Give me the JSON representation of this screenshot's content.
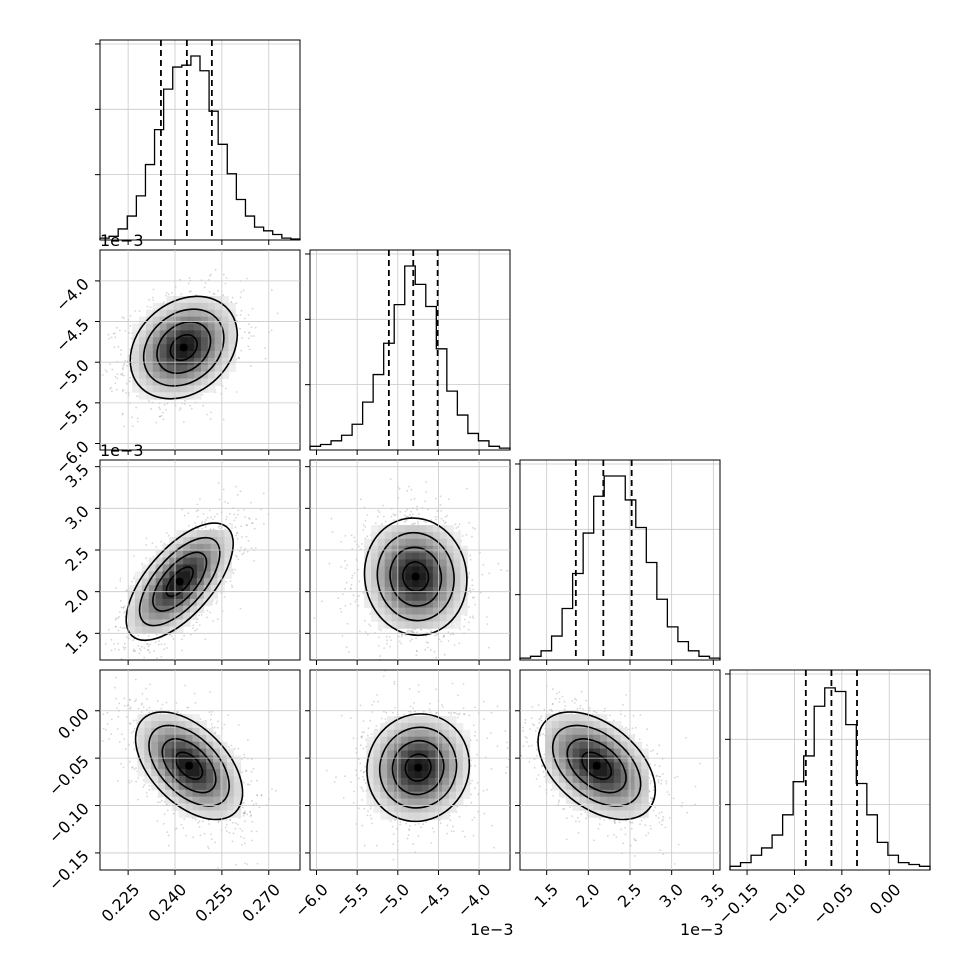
{
  "chart_data": {
    "type": "corner",
    "params": [
      {
        "range": [
          0.216,
          0.28
        ],
        "ticks": [
          0.225,
          0.24,
          0.255,
          0.27
        ],
        "tick_labels": [
          "0.225",
          "0.240",
          "0.255",
          "0.270"
        ],
        "quantiles": [
          0.2355,
          0.2438,
          0.2518
        ],
        "offset_label": ""
      },
      {
        "range": [
          -6.08,
          -3.62
        ],
        "ticks": [
          -6.0,
          -5.5,
          -5.0,
          -4.5,
          -4.0
        ],
        "tick_labels": [
          "−6.0",
          "−5.5",
          "−5.0",
          "−4.5",
          "−4.0"
        ],
        "quantiles": [
          -5.11,
          -4.81,
          -4.51
        ],
        "offset_label": "1e−3"
      },
      {
        "range": [
          1.18,
          3.58
        ],
        "ticks": [
          1.5,
          2.0,
          2.5,
          3.0,
          3.5
        ],
        "tick_labels": [
          "1.5",
          "2.0",
          "2.5",
          "3.0",
          "3.5"
        ],
        "quantiles": [
          1.85,
          2.18,
          2.52
        ],
        "offset_label": "1e−3"
      },
      {
        "range": [
          -0.168,
          0.043
        ],
        "ticks": [
          -0.15,
          -0.1,
          -0.05,
          0.0
        ],
        "tick_labels": [
          "−0.15",
          "−0.10",
          "−0.05",
          "0.00"
        ],
        "quantiles": [
          -0.088,
          -0.061,
          -0.034
        ],
        "offset_label": ""
      }
    ],
    "histograms": [
      [
        0.01,
        0.02,
        0.06,
        0.13,
        0.24,
        0.41,
        0.6,
        0.82,
        0.94,
        0.95,
        1.0,
        0.92,
        0.7,
        0.52,
        0.36,
        0.22,
        0.13,
        0.07,
        0.05,
        0.03,
        0.01,
        0.005
      ],
      [
        0.02,
        0.03,
        0.05,
        0.08,
        0.14,
        0.26,
        0.41,
        0.58,
        0.79,
        1.0,
        0.9,
        0.78,
        0.55,
        0.32,
        0.19,
        0.09,
        0.05,
        0.02,
        0.01
      ],
      [
        0.01,
        0.02,
        0.05,
        0.13,
        0.28,
        0.47,
        0.69,
        0.89,
        1.0,
        1.0,
        0.87,
        0.72,
        0.53,
        0.33,
        0.18,
        0.1,
        0.05,
        0.02,
        0.01
      ],
      [
        0.02,
        0.04,
        0.08,
        0.12,
        0.19,
        0.3,
        0.48,
        0.62,
        0.89,
        0.99,
        0.97,
        0.79,
        0.47,
        0.3,
        0.15,
        0.08,
        0.04,
        0.03,
        0.02
      ]
    ],
    "pairs": [
      {
        "row": 1,
        "col": 0,
        "center": [
          0.2428,
          -4.82
        ],
        "rho": 0.25
      },
      {
        "row": 2,
        "col": 0,
        "center": [
          0.2415,
          2.12
        ],
        "rho": 0.65
      },
      {
        "row": 2,
        "col": 1,
        "center": [
          -4.78,
          2.18
        ],
        "rho": -0.05
      },
      {
        "row": 3,
        "col": 0,
        "center": [
          0.2445,
          -0.058
        ],
        "rho": -0.5
      },
      {
        "row": 3,
        "col": 1,
        "center": [
          -4.75,
          -0.06
        ],
        "rho": 0.05
      },
      {
        "row": 3,
        "col": 2,
        "center": [
          2.1,
          -0.058
        ],
        "rho": -0.45
      }
    ],
    "contour_levels_sigma": [
      0.5,
      1.0,
      1.5,
      2.0
    ],
    "grid": true
  }
}
